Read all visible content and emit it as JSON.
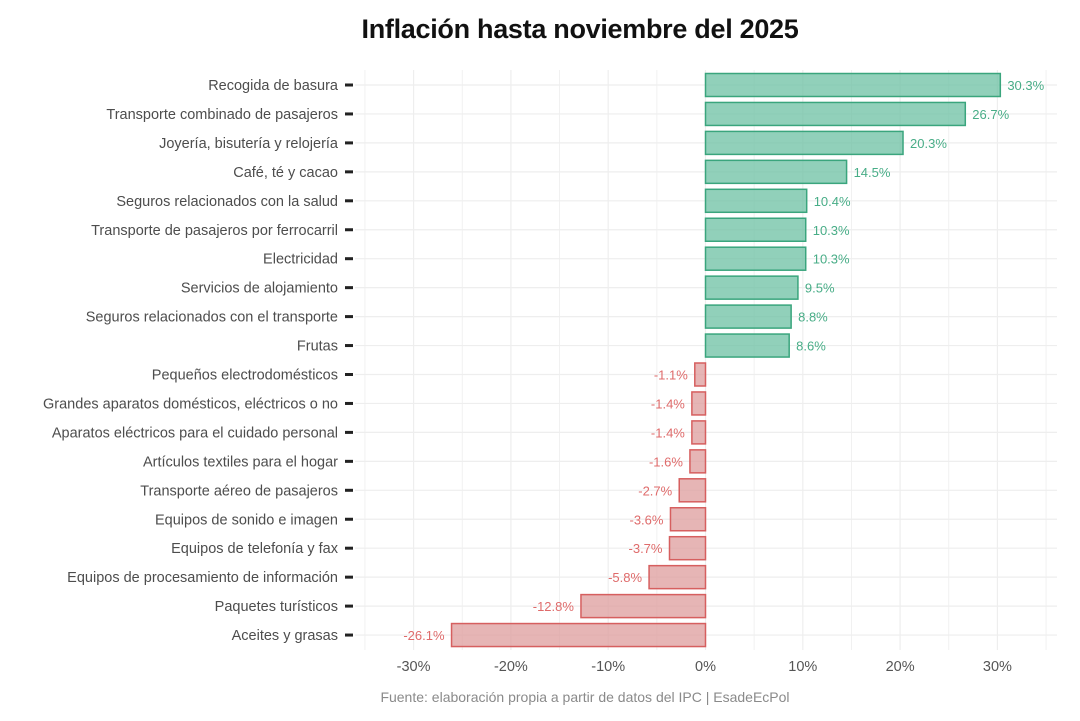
{
  "chart_data": {
    "type": "bar",
    "orientation": "horizontal",
    "title": "Inflación hasta noviembre del 2025",
    "caption": "Fuente: elaboración propia a partir de datos del IPC | EsadeEcPol",
    "xlabel": "",
    "ylabel": "",
    "xlim": [
      -36,
      36
    ],
    "grid": true,
    "legend": "none",
    "x_ticks": [
      -30,
      -20,
      -10,
      0,
      10,
      20,
      30
    ],
    "x_tick_labels": [
      "-30%",
      "-20%",
      "-10%",
      "0%",
      "10%",
      "20%",
      "30%"
    ],
    "colors": {
      "positive": "#6cc0a3",
      "positive_stroke": "#3aa57d",
      "negative": "#de9c9c",
      "negative_stroke": "#d65f5f",
      "positive_label": "#48ad87",
      "negative_label": "#df6b6b"
    },
    "categories": [
      "Recogida de basura",
      "Transporte combinado de pasajeros",
      "Joyería, bisutería y relojería",
      "Café, té y cacao",
      "Seguros relacionados con la salud",
      "Transporte de pasajeros por ferrocarril",
      "Electricidad",
      "Servicios de alojamiento",
      "Seguros relacionados con el transporte",
      "Frutas",
      "Pequeños electrodomésticos",
      "Grandes aparatos domésticos, eléctricos o no",
      "Aparatos eléctricos para el cuidado personal",
      "Artículos textiles para el hogar",
      "Transporte aéreo de pasajeros",
      "Equipos de sonido e imagen",
      "Equipos de telefonía y fax",
      "Equipos de procesamiento de información",
      "Paquetes turísticos",
      "Aceites y grasas"
    ],
    "values": [
      30.3,
      26.7,
      20.3,
      14.5,
      10.4,
      10.3,
      10.3,
      9.5,
      8.8,
      8.6,
      -1.1,
      -1.4,
      -1.4,
      -1.6,
      -2.7,
      -3.6,
      -3.7,
      -5.8,
      -12.8,
      -26.1
    ],
    "value_labels": [
      "30.3%",
      "26.7%",
      "20.3%",
      "14.5%",
      "10.4%",
      "10.3%",
      "10.3%",
      "9.5%",
      "8.8%",
      "8.6%",
      "-1.1%",
      "-1.4%",
      "-1.4%",
      "-1.6%",
      "-2.7%",
      "-3.6%",
      "-3.7%",
      "-5.8%",
      "-12.8%",
      "-26.1%"
    ]
  }
}
